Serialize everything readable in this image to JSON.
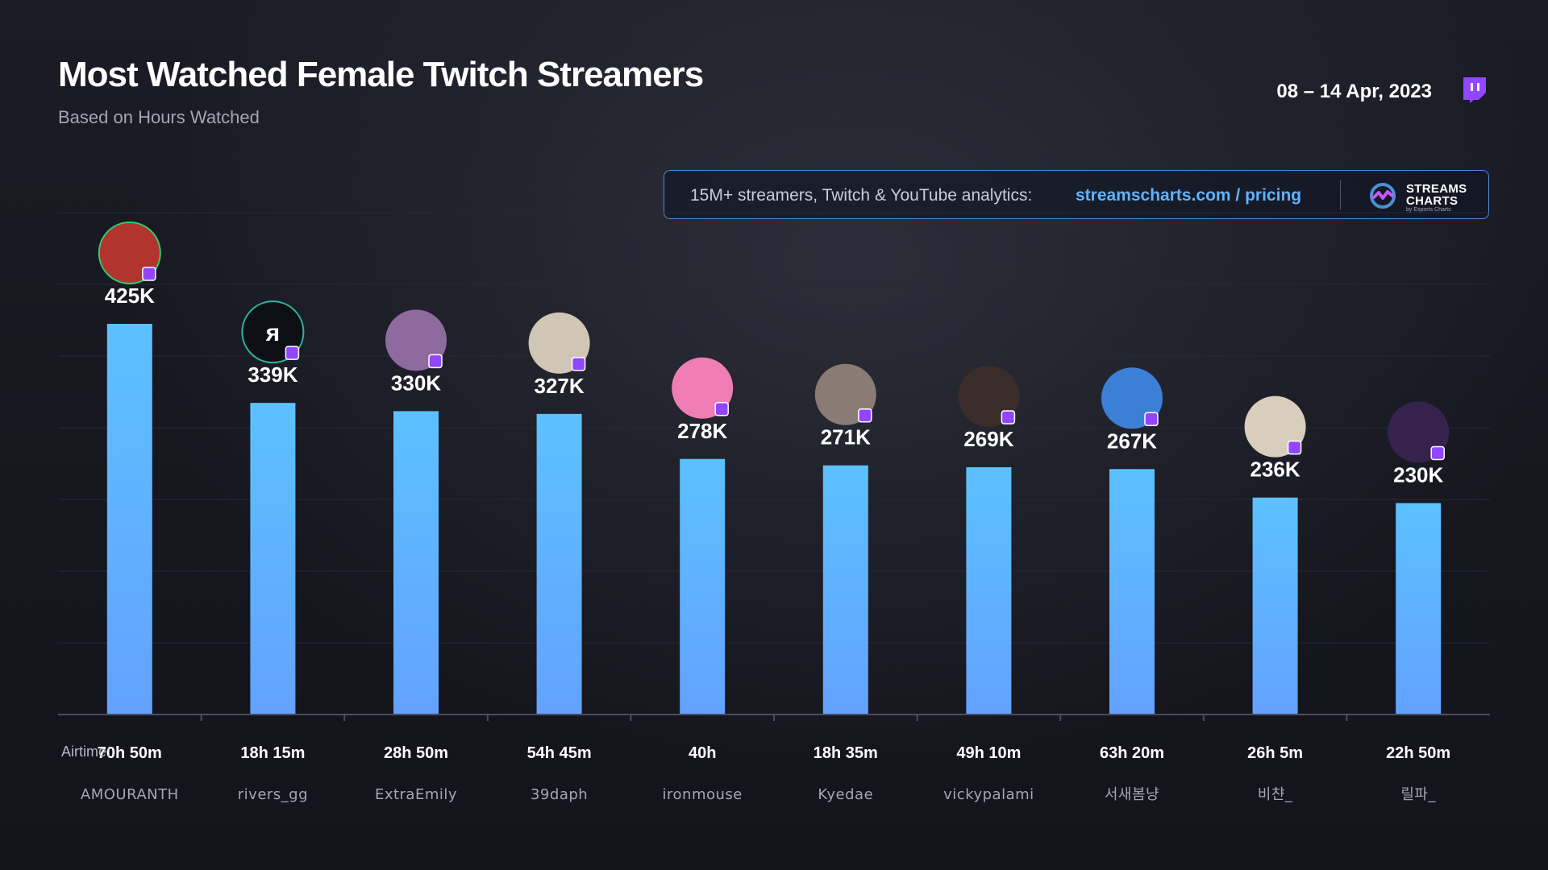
{
  "header": {
    "title": "Most Watched Female Twitch Streamers",
    "subtitle": "Based on Hours Watched",
    "date_range": "08 – 14 Apr, 2023"
  },
  "banner": {
    "text": "15M+ streamers, Twitch & YouTube analytics:",
    "link": "streamscharts.com / pricing",
    "logo_line1": "STREAMS",
    "logo_line2": "CHARTS",
    "logo_byline": "by Esports Charts"
  },
  "icons": {
    "platform": "twitch-icon",
    "brand": "streams-charts-logo-icon"
  },
  "colors": {
    "bar_top": "#5cc1ff",
    "bar_bottom": "#63a2ff",
    "background": "#15161e",
    "link": "#5fb3ff",
    "twitch": "#9146ff"
  },
  "chart_data": {
    "type": "bar",
    "title": "Most Watched Female Twitch Streamers",
    "subtitle": "Based on Hours Watched",
    "categories": [
      "AMOURANTH",
      "rivers_gg",
      "ExtraEmily",
      "39daph",
      "ironmouse",
      "Kyedae",
      "vickypalami",
      "서새봄냥",
      "비챤_",
      "릴파_"
    ],
    "values": [
      425000,
      339000,
      330000,
      327000,
      278000,
      271000,
      269000,
      267000,
      236000,
      230000
    ],
    "value_labels": [
      "425K",
      "339K",
      "330K",
      "327K",
      "278K",
      "271K",
      "269K",
      "267K",
      "236K",
      "230K"
    ],
    "airtime_label": "Airtime:",
    "airtime": [
      "70h 50m",
      "18h 15m",
      "28h 50m",
      "54h 45m",
      "40h",
      "18h 35m",
      "49h 10m",
      "63h 20m",
      "26h 5m",
      "22h 50m"
    ],
    "ylim": [
      0,
      425000
    ],
    "grid": true,
    "legend": "none"
  }
}
